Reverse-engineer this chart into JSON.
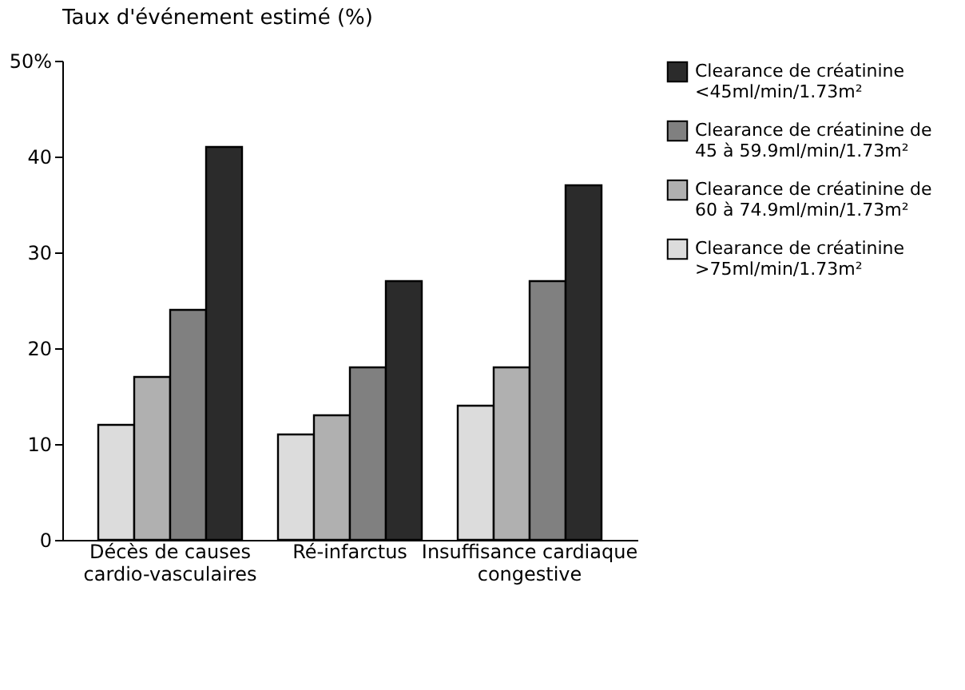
{
  "chart_data": {
    "type": "bar",
    "title": "Taux d'événement estimé (%)",
    "categories": [
      "Décès de causes cardio-vasculaires",
      "Ré-infarctus",
      "Insuffisance cardiaque congestive"
    ],
    "series": [
      {
        "name": "Clearance de créatinine >75ml/min/1.73m²",
        "color": "#dcdcdc",
        "values": [
          12,
          11,
          14
        ]
      },
      {
        "name": "Clearance de créatinine de 60 à 74.9ml/min/1.73m²",
        "color": "#b0b0b0",
        "values": [
          17,
          13,
          18
        ]
      },
      {
        "name": "Clearance de créatinine de 45 à 59.9ml/min/1.73m²",
        "color": "#808080",
        "values": [
          24,
          18,
          27
        ]
      },
      {
        "name": "Clearance de créatinine <45ml/min/1.73m²",
        "color": "#2b2b2b",
        "values": [
          41,
          27,
          37
        ]
      }
    ],
    "ylim": [
      0,
      50
    ],
    "yticks": [
      0,
      10,
      20,
      30,
      40,
      {
        "value": 50,
        "label": "50%"
      }
    ],
    "grid": false,
    "legend": "right"
  }
}
